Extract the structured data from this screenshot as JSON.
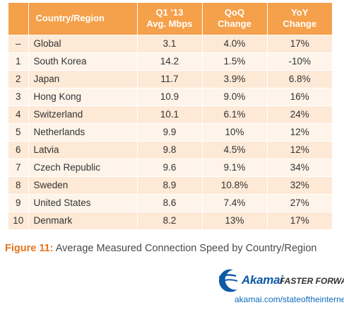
{
  "chart_data": {
    "type": "table",
    "columns": [
      {
        "id": "rank",
        "lines": [
          ""
        ]
      },
      {
        "id": "country",
        "lines": [
          "Country/Region"
        ]
      },
      {
        "id": "mbps",
        "lines": [
          "Q1 ’13",
          "Avg. Mbps"
        ]
      },
      {
        "id": "qoq",
        "lines": [
          "QoQ",
          "Change"
        ]
      },
      {
        "id": "yoy",
        "lines": [
          "YoY",
          "Change"
        ]
      }
    ],
    "rows": [
      {
        "rank": "–",
        "country": "Global",
        "mbps": "3.1",
        "qoq": "4.0%",
        "yoy": "17%"
      },
      {
        "rank": "1",
        "country": "South Korea",
        "mbps": "14.2",
        "qoq": "1.5%",
        "yoy": "-10%"
      },
      {
        "rank": "2",
        "country": "Japan",
        "mbps": "11.7",
        "qoq": "3.9%",
        "yoy": "6.8%"
      },
      {
        "rank": "3",
        "country": "Hong Kong",
        "mbps": "10.9",
        "qoq": "9.0%",
        "yoy": "16%"
      },
      {
        "rank": "4",
        "country": "Switzerland",
        "mbps": "10.1",
        "qoq": "6.1%",
        "yoy": "24%"
      },
      {
        "rank": "5",
        "country": "Netherlands",
        "mbps": "9.9",
        "qoq": "10%",
        "yoy": "12%"
      },
      {
        "rank": "6",
        "country": "Latvia",
        "mbps": "9.8",
        "qoq": "4.5%",
        "yoy": "12%"
      },
      {
        "rank": "7",
        "country": "Czech Republic",
        "mbps": "9.6",
        "qoq": "9.1%",
        "yoy": "34%"
      },
      {
        "rank": "8",
        "country": "Sweden",
        "mbps": "8.9",
        "qoq": "10.8%",
        "yoy": "32%"
      },
      {
        "rank": "9",
        "country": "United States",
        "mbps": "8.6",
        "qoq": "7.4%",
        "yoy": "27%"
      },
      {
        "rank": "10",
        "country": "Denmark",
        "mbps": "8.2",
        "qoq": "13%",
        "yoy": "17%"
      }
    ],
    "header_color": "#f5a04a",
    "row_colors": [
      "#fde9d6",
      "#fef4ea"
    ]
  },
  "caption": {
    "label": "Figure 11:",
    "text": "Average Measured Connection Speed by Country/Region",
    "label_color": "#e8731b"
  },
  "brand": {
    "logo_icon": "akamai-logo-icon",
    "name": "Akamai",
    "tagline": "FASTER FORWARD",
    "url": "akamai.com/stateoftheinternet",
    "color": "#0e5aa7"
  }
}
